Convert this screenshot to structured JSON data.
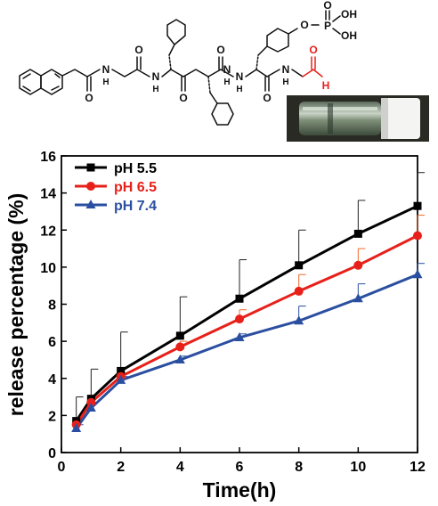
{
  "structure": {
    "labels": {
      "o_top": "O",
      "p": "P",
      "oh_upper": "OH",
      "oh_lower": "OH",
      "o_phenol": "O",
      "o_aldehyde": "O",
      "h_aldehyde": "H",
      "n1": "N",
      "h1": "H",
      "n2": "N",
      "h2": "H",
      "n3": "N",
      "h3": "H",
      "n4": "N",
      "h4": "H",
      "n5": "N",
      "h5": "H",
      "o_c1": "O",
      "o_c2": "O",
      "o_c3": "O",
      "o_c4": "O",
      "o_c5": "O"
    },
    "colors": {
      "aldehyde": "#e8201a",
      "bonds": "#111111"
    }
  },
  "photo": {
    "description_icon": "vial-photo"
  },
  "chart_data": {
    "type": "line",
    "xlabel": "Time(h)",
    "ylabel": "release percentage (%)",
    "xlim": [
      0,
      12
    ],
    "ylim": [
      0,
      16
    ],
    "xticks": [
      0,
      2,
      4,
      6,
      8,
      10,
      12
    ],
    "yticks": [
      0,
      2,
      4,
      6,
      8,
      10,
      12,
      14,
      16
    ],
    "grid": false,
    "legend_position": "top-left",
    "x": [
      0.5,
      1,
      2,
      4,
      6,
      8,
      10,
      12
    ],
    "series": [
      {
        "name": "pH 5.5",
        "color": "#000000",
        "marker": "square",
        "values": [
          1.7,
          2.9,
          4.4,
          6.3,
          8.3,
          10.1,
          11.8,
          13.3
        ],
        "errors": [
          1.3,
          1.6,
          2.1,
          2.1,
          2.1,
          1.9,
          1.8,
          1.8
        ],
        "error_color": "#222222"
      },
      {
        "name": "pH 6.5",
        "color": "#e8201a",
        "marker": "circle",
        "values": [
          1.5,
          2.7,
          4.1,
          5.7,
          7.2,
          8.7,
          10.1,
          11.7
        ],
        "errors": [
          0.3,
          0.3,
          0.2,
          0.3,
          0.5,
          0.9,
          0.9,
          1.1
        ],
        "error_color": "#f06a2a"
      },
      {
        "name": "pH 7.4",
        "color": "#2b4fa0",
        "marker": "triangle",
        "values": [
          1.3,
          2.4,
          3.9,
          5.0,
          6.2,
          7.1,
          8.3,
          9.6
        ],
        "errors": [
          0.2,
          0.3,
          0.2,
          0.2,
          0.2,
          0.8,
          0.8,
          0.6
        ],
        "error_color": "#2b4fa0"
      }
    ]
  }
}
